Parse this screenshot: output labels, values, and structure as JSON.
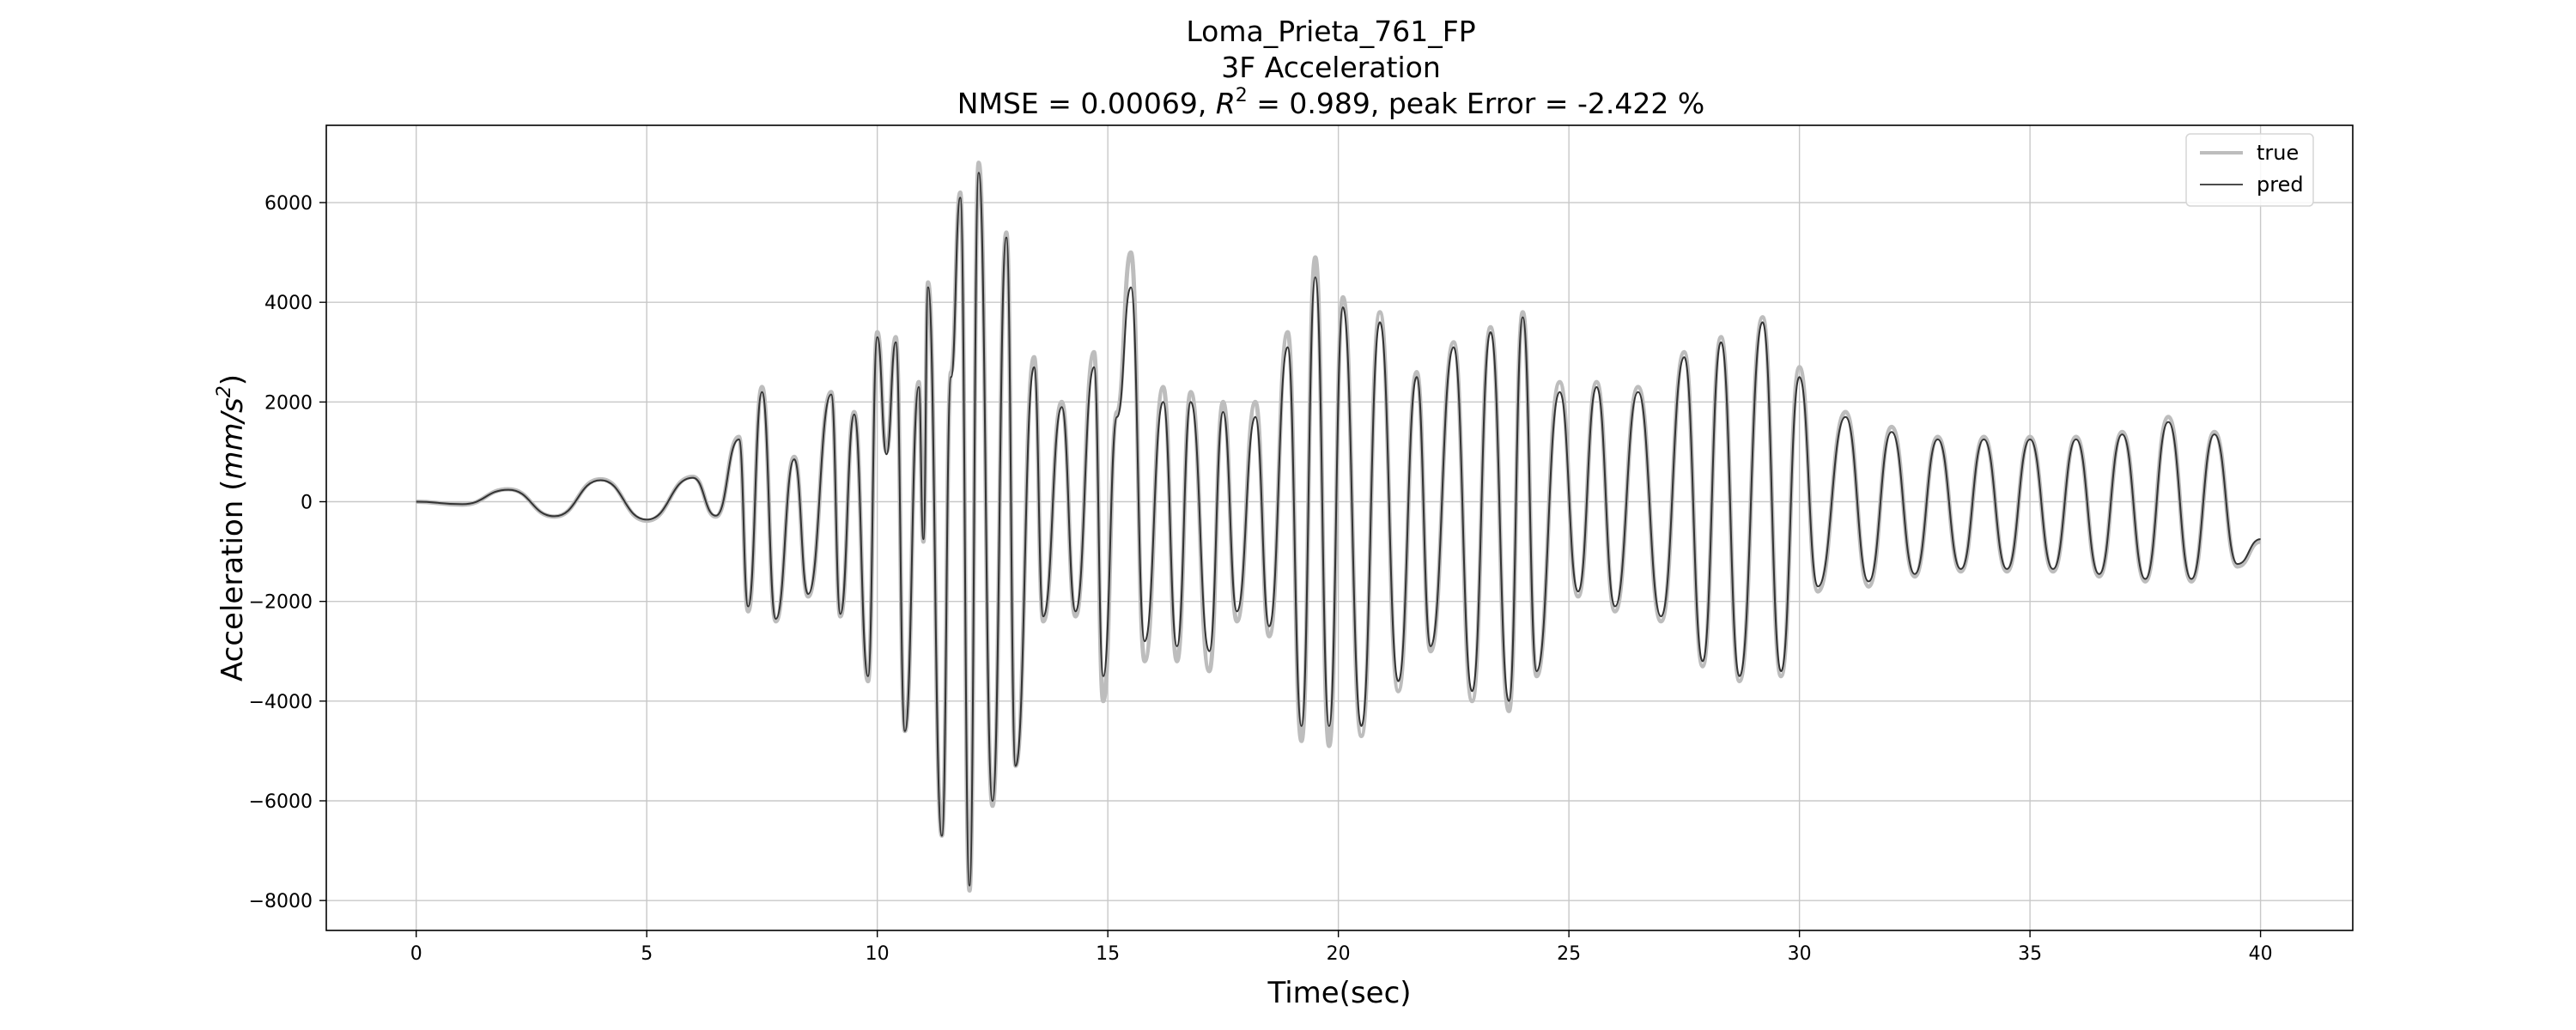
{
  "chart_data": {
    "type": "line",
    "title": "Loma_Prieta_761_FP",
    "subtitle": "3F Acceleration",
    "metrics": {
      "prefix": "NMSE = 0.00069, ",
      "r_symbol": "R",
      "r_exponent": "2",
      "suffix": " = 0.989, peak Error = -2.422 %"
    },
    "xlabel": "Time(sec)",
    "ylabel": {
      "prefix": "Acceleration (",
      "unit_base": "mm/s",
      "unit_exp": "2",
      "suffix": ")"
    },
    "xlim": [
      -1.95,
      42.0
    ],
    "ylim": [
      -8600,
      7550
    ],
    "x_ticks": [
      0,
      5,
      10,
      15,
      20,
      25,
      30,
      35,
      40
    ],
    "y_ticks": [
      -8000,
      -6000,
      -4000,
      -2000,
      0,
      2000,
      4000,
      6000
    ],
    "grid": true,
    "legend_position": "upper right",
    "series": [
      {
        "name": "true",
        "color": "#bdbdbd",
        "key_points": [
          [
            0,
            0
          ],
          [
            1,
            -60
          ],
          [
            2,
            250
          ],
          [
            3,
            -300
          ],
          [
            4,
            450
          ],
          [
            5,
            -380
          ],
          [
            6,
            500
          ],
          [
            6.5,
            -300
          ],
          [
            7,
            1300
          ],
          [
            7.2,
            -2200
          ],
          [
            7.5,
            2300
          ],
          [
            7.8,
            -2400
          ],
          [
            8.2,
            900
          ],
          [
            8.5,
            -1900
          ],
          [
            9.0,
            2200
          ],
          [
            9.2,
            -2300
          ],
          [
            9.5,
            1800
          ],
          [
            9.8,
            -3600
          ],
          [
            10.0,
            3400
          ],
          [
            10.2,
            1000
          ],
          [
            10.4,
            3300
          ],
          [
            10.6,
            -4600
          ],
          [
            10.9,
            2400
          ],
          [
            11.0,
            -800
          ],
          [
            11.1,
            4400
          ],
          [
            11.4,
            -6700
          ],
          [
            11.6,
            2600
          ],
          [
            11.8,
            6200
          ],
          [
            12.0,
            -7800
          ],
          [
            12.2,
            6800
          ],
          [
            12.5,
            -6100
          ],
          [
            12.8,
            5400
          ],
          [
            13.0,
            -5300
          ],
          [
            13.4,
            2900
          ],
          [
            13.6,
            -2400
          ],
          [
            14.0,
            2000
          ],
          [
            14.3,
            -2300
          ],
          [
            14.7,
            3000
          ],
          [
            14.9,
            -4000
          ],
          [
            15.2,
            1800
          ],
          [
            15.5,
            5000
          ],
          [
            15.8,
            -3200
          ],
          [
            16.2,
            2300
          ],
          [
            16.5,
            -3200
          ],
          [
            16.8,
            2200
          ],
          [
            17.2,
            -3400
          ],
          [
            17.5,
            2000
          ],
          [
            17.8,
            -2400
          ],
          [
            18.2,
            2000
          ],
          [
            18.5,
            -2700
          ],
          [
            18.9,
            3400
          ],
          [
            19.2,
            -4800
          ],
          [
            19.5,
            4900
          ],
          [
            19.8,
            -4900
          ],
          [
            20.1,
            4100
          ],
          [
            20.5,
            -4700
          ],
          [
            20.9,
            3800
          ],
          [
            21.3,
            -3800
          ],
          [
            21.7,
            2600
          ],
          [
            22.0,
            -3000
          ],
          [
            22.5,
            3200
          ],
          [
            22.9,
            -4000
          ],
          [
            23.3,
            3500
          ],
          [
            23.7,
            -4200
          ],
          [
            24.0,
            3800
          ],
          [
            24.3,
            -3500
          ],
          [
            24.8,
            2400
          ],
          [
            25.2,
            -1900
          ],
          [
            25.6,
            2400
          ],
          [
            26.0,
            -2200
          ],
          [
            26.5,
            2300
          ],
          [
            27.0,
            -2400
          ],
          [
            27.5,
            3000
          ],
          [
            27.9,
            -3300
          ],
          [
            28.3,
            3300
          ],
          [
            28.7,
            -3600
          ],
          [
            29.2,
            3700
          ],
          [
            29.6,
            -3500
          ],
          [
            30.0,
            2700
          ],
          [
            30.4,
            -1800
          ],
          [
            31.0,
            1800
          ],
          [
            31.5,
            -1700
          ],
          [
            32.0,
            1500
          ],
          [
            32.5,
            -1500
          ],
          [
            33.0,
            1300
          ],
          [
            33.5,
            -1400
          ],
          [
            34.0,
            1300
          ],
          [
            34.5,
            -1400
          ],
          [
            35.0,
            1300
          ],
          [
            35.5,
            -1400
          ],
          [
            36.0,
            1300
          ],
          [
            36.5,
            -1500
          ],
          [
            37.0,
            1400
          ],
          [
            37.5,
            -1600
          ],
          [
            38.0,
            1700
          ],
          [
            38.5,
            -1600
          ],
          [
            39.0,
            1400
          ],
          [
            39.5,
            -1300
          ],
          [
            40.0,
            -800
          ]
        ]
      },
      {
        "name": "pred",
        "color": "#333333",
        "key_points": [
          [
            0,
            0
          ],
          [
            1,
            -50
          ],
          [
            2,
            240
          ],
          [
            3,
            -290
          ],
          [
            4,
            430
          ],
          [
            5,
            -360
          ],
          [
            6,
            480
          ],
          [
            6.5,
            -280
          ],
          [
            7,
            1250
          ],
          [
            7.2,
            -2100
          ],
          [
            7.5,
            2200
          ],
          [
            7.8,
            -2350
          ],
          [
            8.2,
            850
          ],
          [
            8.5,
            -1850
          ],
          [
            9.0,
            2150
          ],
          [
            9.2,
            -2250
          ],
          [
            9.5,
            1750
          ],
          [
            9.8,
            -3500
          ],
          [
            10.0,
            3300
          ],
          [
            10.2,
            950
          ],
          [
            10.4,
            3200
          ],
          [
            10.6,
            -4600
          ],
          [
            10.9,
            2300
          ],
          [
            11.0,
            -750
          ],
          [
            11.1,
            4300
          ],
          [
            11.4,
            -6700
          ],
          [
            11.6,
            2500
          ],
          [
            11.8,
            6100
          ],
          [
            12.0,
            -7700
          ],
          [
            12.2,
            6600
          ],
          [
            12.5,
            -6000
          ],
          [
            12.8,
            5300
          ],
          [
            13.0,
            -5300
          ],
          [
            13.4,
            2700
          ],
          [
            13.6,
            -2300
          ],
          [
            14.0,
            1900
          ],
          [
            14.3,
            -2200
          ],
          [
            14.7,
            2700
          ],
          [
            14.9,
            -3500
          ],
          [
            15.2,
            1700
          ],
          [
            15.5,
            4300
          ],
          [
            15.8,
            -2800
          ],
          [
            16.2,
            2000
          ],
          [
            16.5,
            -2900
          ],
          [
            16.8,
            2000
          ],
          [
            17.2,
            -3000
          ],
          [
            17.5,
            1800
          ],
          [
            17.8,
            -2200
          ],
          [
            18.2,
            1700
          ],
          [
            18.5,
            -2500
          ],
          [
            18.9,
            3100
          ],
          [
            19.2,
            -4500
          ],
          [
            19.5,
            4500
          ],
          [
            19.8,
            -4500
          ],
          [
            20.1,
            3900
          ],
          [
            20.5,
            -4500
          ],
          [
            20.9,
            3600
          ],
          [
            21.3,
            -3600
          ],
          [
            21.7,
            2500
          ],
          [
            22.0,
            -2900
          ],
          [
            22.5,
            3100
          ],
          [
            22.9,
            -3800
          ],
          [
            23.3,
            3400
          ],
          [
            23.7,
            -4000
          ],
          [
            24.0,
            3700
          ],
          [
            24.3,
            -3400
          ],
          [
            24.8,
            2200
          ],
          [
            25.2,
            -1800
          ],
          [
            25.6,
            2300
          ],
          [
            26.0,
            -2100
          ],
          [
            26.5,
            2200
          ],
          [
            27.0,
            -2300
          ],
          [
            27.5,
            2900
          ],
          [
            27.9,
            -3200
          ],
          [
            28.3,
            3200
          ],
          [
            28.7,
            -3500
          ],
          [
            29.2,
            3600
          ],
          [
            29.6,
            -3400
          ],
          [
            30.0,
            2500
          ],
          [
            30.4,
            -1700
          ],
          [
            31.0,
            1700
          ],
          [
            31.5,
            -1600
          ],
          [
            32.0,
            1400
          ],
          [
            32.5,
            -1450
          ],
          [
            33.0,
            1250
          ],
          [
            33.5,
            -1350
          ],
          [
            34.0,
            1250
          ],
          [
            34.5,
            -1350
          ],
          [
            35.0,
            1250
          ],
          [
            35.5,
            -1350
          ],
          [
            36.0,
            1250
          ],
          [
            36.5,
            -1450
          ],
          [
            37.0,
            1350
          ],
          [
            37.5,
            -1550
          ],
          [
            38.0,
            1600
          ],
          [
            38.5,
            -1550
          ],
          [
            39.0,
            1350
          ],
          [
            39.5,
            -1250
          ],
          [
            40.0,
            -750
          ]
        ]
      }
    ]
  }
}
